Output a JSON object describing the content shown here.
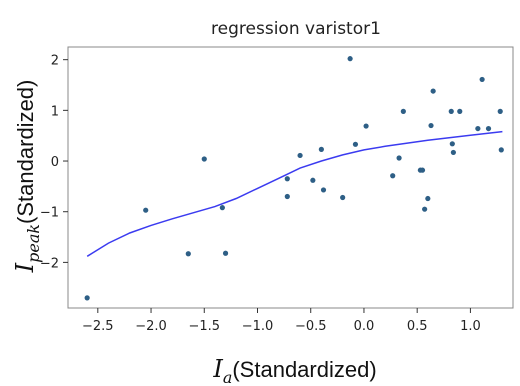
{
  "chart_data": {
    "type": "scatter",
    "title": "regression varistor1",
    "xlabel": {
      "main": "I",
      "sub": "a",
      "suffix": "(Standardized)"
    },
    "ylabel": {
      "main": "I",
      "sub": "peak",
      "suffix": "(Standardized)"
    },
    "xlim": [
      -2.78,
      1.4
    ],
    "ylim": [
      -2.9,
      2.25
    ],
    "xticks": [
      -2.5,
      -2.0,
      -1.5,
      -1.0,
      -0.5,
      0.0,
      0.5,
      1.0
    ],
    "xtick_labels": [
      "−2.5",
      "−2.0",
      "−1.5",
      "−1.0",
      "−0.5",
      "0.0",
      "0.5",
      "1.0"
    ],
    "yticks": [
      2,
      1,
      0,
      -1,
      -2
    ],
    "ytick_labels": [
      "2",
      "1",
      "0",
      "−1",
      "−2"
    ],
    "grid": false,
    "colors": {
      "points": "#2e5f86",
      "line": "#3b3bf0",
      "frame": "#888888"
    },
    "points": [
      [
        -2.6,
        -2.7
      ],
      [
        -2.05,
        -0.97
      ],
      [
        -1.65,
        -1.83
      ],
      [
        -1.5,
        0.04
      ],
      [
        -1.33,
        -0.92
      ],
      [
        -1.3,
        -1.82
      ],
      [
        -0.72,
        -0.35
      ],
      [
        -0.72,
        -0.7
      ],
      [
        -0.6,
        0.11
      ],
      [
        -0.48,
        -0.38
      ],
      [
        -0.4,
        0.23
      ],
      [
        -0.38,
        -0.57
      ],
      [
        -0.2,
        -0.72
      ],
      [
        -0.13,
        2.02
      ],
      [
        -0.08,
        0.33
      ],
      [
        0.02,
        0.69
      ],
      [
        0.27,
        -0.29
      ],
      [
        0.33,
        0.06
      ],
      [
        0.37,
        0.98
      ],
      [
        0.53,
        -0.18
      ],
      [
        0.55,
        -0.18
      ],
      [
        0.57,
        -0.95
      ],
      [
        0.6,
        -0.74
      ],
      [
        0.63,
        0.7
      ],
      [
        0.65,
        1.38
      ],
      [
        0.82,
        0.98
      ],
      [
        0.83,
        0.34
      ],
      [
        0.84,
        0.17
      ],
      [
        0.9,
        0.98
      ],
      [
        1.07,
        0.64
      ],
      [
        1.11,
        1.61
      ],
      [
        1.17,
        0.64
      ],
      [
        1.28,
        0.98
      ],
      [
        1.29,
        0.22
      ]
    ],
    "series": [
      {
        "type": "line",
        "values": [
          [
            -2.6,
            -1.88
          ],
          [
            -2.4,
            -1.62
          ],
          [
            -2.2,
            -1.42
          ],
          [
            -2.0,
            -1.27
          ],
          [
            -1.8,
            -1.14
          ],
          [
            -1.6,
            -1.02
          ],
          [
            -1.4,
            -0.9
          ],
          [
            -1.2,
            -0.74
          ],
          [
            -1.0,
            -0.54
          ],
          [
            -0.8,
            -0.34
          ],
          [
            -0.6,
            -0.14
          ],
          [
            -0.4,
            0.0
          ],
          [
            -0.2,
            0.12
          ],
          [
            0.0,
            0.22
          ],
          [
            0.2,
            0.29
          ],
          [
            0.4,
            0.35
          ],
          [
            0.6,
            0.41
          ],
          [
            0.8,
            0.46
          ],
          [
            1.0,
            0.51
          ],
          [
            1.3,
            0.58
          ]
        ]
      }
    ]
  }
}
